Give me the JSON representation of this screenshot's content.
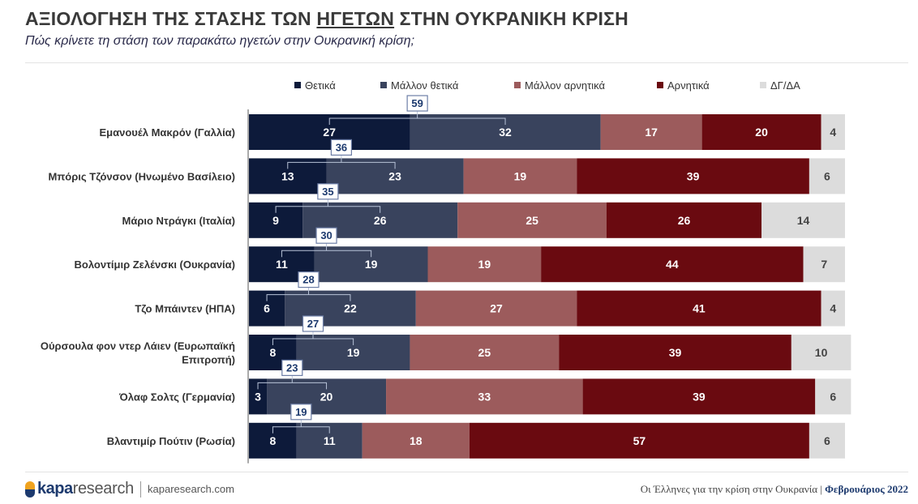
{
  "header": {
    "title_pre": "ΑΞΙΟΛΟΓΗΣΗ ΤΗΣ ΣΤΑΣΗΣ ΤΩΝ ",
    "title_underlined": "ΗΓΕΤΩΝ",
    "title_post": " ΣΤΗΝ ΟΥΚΡΑΝΙΚΗ ΚΡΙΣΗ",
    "subtitle": "Πώς κρίνετε τη στάση των παρακάτω ηγετών στην Ουκρανική κρίση;"
  },
  "colors": {
    "positive": "#0d1a3a",
    "rather_positive": "#39435d",
    "rather_negative": "#9c5b5c",
    "negative": "#6a0a10",
    "dk_na": "#dcdcdc"
  },
  "chart_data": {
    "type": "bar",
    "orientation": "horizontal",
    "stacked": true,
    "categories": [
      "Εμανουέλ Μακρόν (Γαλλία)",
      "Μπόρις Τζόνσον (Ηνωμένο Βασίλειο)",
      "Μάριο Ντράγκι (Ιταλία)",
      "Βολοντίμιρ Ζελένσκι (Ουκρανία)",
      "Τζο Μπάιντεν (ΗΠΑ)",
      "Ούρσουλα φον ντερ Λάιεν (Ευρωπαϊκή Επιτροπή)",
      "Όλαφ Σολτς (Γερμανία)",
      "Βλαντιμίρ Πούτιν (Ρωσία)"
    ],
    "category_lines": [
      [
        "Εμανουέλ Μακρόν (Γαλλία)"
      ],
      [
        "Μπόρις Τζόνσον (Ηνωμένο Βασίλειο)"
      ],
      [
        "Μάριο Ντράγκι (Ιταλία)"
      ],
      [
        "Βολοντίμιρ Ζελένσκι (Ουκρανία)"
      ],
      [
        "Τζο Μπάιντεν (ΗΠΑ)"
      ],
      [
        "Ούρσουλα φον ντερ Λάιεν (Ευρωπαϊκή",
        "Επιτροπή)"
      ],
      [
        "Όλαφ Σολτς (Γερμανία)"
      ],
      [
        "Βλαντιμίρ Πούτιν (Ρωσία)"
      ]
    ],
    "series": [
      {
        "name": "Θετικά",
        "color": "#0d1a3a",
        "label_color": "#ffffff",
        "values": [
          27,
          13,
          9,
          11,
          6,
          8,
          3,
          8
        ]
      },
      {
        "name": "Μάλλον θετικά",
        "color": "#39435d",
        "label_color": "#ffffff",
        "values": [
          32,
          23,
          26,
          19,
          22,
          19,
          20,
          11
        ]
      },
      {
        "name": "Μάλλον αρνητικά",
        "color": "#9c5b5c",
        "label_color": "#ffffff",
        "values": [
          17,
          19,
          25,
          19,
          27,
          25,
          33,
          18
        ]
      },
      {
        "name": "Αρνητικά",
        "color": "#6a0a10",
        "label_color": "#ffffff",
        "values": [
          20,
          39,
          26,
          44,
          41,
          39,
          39,
          57
        ]
      },
      {
        "name": "ΔΓ/ΔΑ",
        "color": "#dcdcdc",
        "label_color": "#444444",
        "values": [
          4,
          6,
          14,
          7,
          4,
          10,
          6,
          6
        ]
      }
    ],
    "totals_positive": [
      59,
      36,
      35,
      30,
      28,
      27,
      23,
      19
    ],
    "legend_position": "top",
    "grid": false
  },
  "footer": {
    "brand_bold": "kapa",
    "brand_light": "research",
    "website": "kaparesearch.com",
    "report": "Οι Έλληνες για την κρίση στην Ουκρανία | ",
    "date": "Φεβρουάριος 2022"
  }
}
